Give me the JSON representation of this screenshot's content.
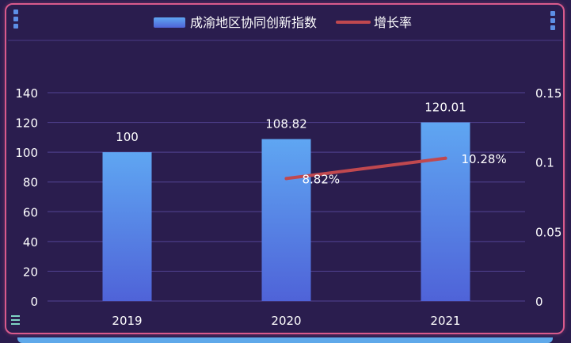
{
  "chart_data": {
    "type": "bar",
    "categories": [
      "2019",
      "2020",
      "2021"
    ],
    "series": [
      {
        "name": "成渝地区协同创新指数",
        "type": "bar",
        "values": [
          100,
          108.82,
          120.01
        ],
        "labels": [
          "100",
          "108.82",
          "120.01"
        ],
        "color": "#5b9cf0"
      },
      {
        "name": "增长率",
        "type": "line",
        "axis": "right",
        "x": [
          "2020",
          "2021"
        ],
        "values": [
          0.0882,
          0.1028
        ],
        "labels": [
          "8.82%",
          "10.28%"
        ],
        "color": "#c0484f"
      }
    ],
    "y_left": {
      "ylim": [
        0,
        140
      ],
      "ticks": [
        "0",
        "20",
        "40",
        "60",
        "80",
        "100",
        "120",
        "140"
      ]
    },
    "y_right": {
      "ylim": [
        0,
        0.15
      ],
      "ticks": [
        "0",
        "0.05",
        "0.1",
        "0.15"
      ]
    },
    "grid": true,
    "legend": "top-center",
    "title": "",
    "xlabel": "",
    "ylabel": ""
  },
  "colors": {
    "background": "#2a1d4e",
    "border": "#d85a8c",
    "grid": "#4b3c86",
    "text": "#ffffff"
  }
}
